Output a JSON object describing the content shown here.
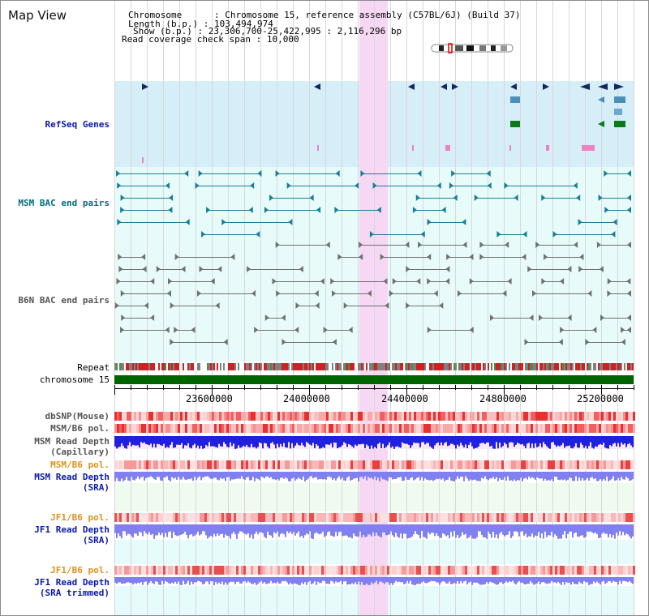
{
  "window": {
    "title": "Map View"
  },
  "info": {
    "chromosome_key": "Chromosome",
    "chromosome_value": "Chromosome 15, reference assembly (C57BL/6J) (Build 37)",
    "length_key": "Length (b.p.)",
    "length_value": "103,494,974",
    "show_key": "Show (b.p.)",
    "show_value": "23,306,700-25,422,995 : 2,116,296 bp",
    "span_key": "Read coverage check span",
    "span_value": "10,000"
  },
  "tracks": {
    "refseq": "RefSeq Genes",
    "msm_bac": "MSM BAC end pairs",
    "b6n_bac": "B6N BAC end pairs",
    "repeat": "Repeat",
    "chromosome": "chromosome 15",
    "dbsnp": "dbSNP(Mouse)",
    "msm_pol1": "MSM/B6 pol.",
    "msm_depth_cap": "MSM Read Depth\n(Capillary)",
    "msm_pol2": "MSM/B6 pol.",
    "msm_depth_sra": "MSM Read Depth\n(SRA)",
    "jf1_pol1": "JF1/B6 pol.",
    "jf1_depth_sra": "JF1 Read Depth\n(SRA)",
    "jf1_pol2": "JF1/B6 pol.",
    "jf1_depth_trim": "JF1 Read Depth\n(SRA trimmed)"
  },
  "ruler": {
    "ticks": [
      "23600000",
      "24000000",
      "24400000",
      "24800000",
      "25200000"
    ]
  },
  "colors": {
    "refseq_bg": "#d6eef8",
    "bac_bg": "#e8fbfb",
    "highlight": "#f7d8f4",
    "chrom_bar": "#006400",
    "depth_blue": "#2020e0",
    "depth_light": "#8080f0"
  }
}
